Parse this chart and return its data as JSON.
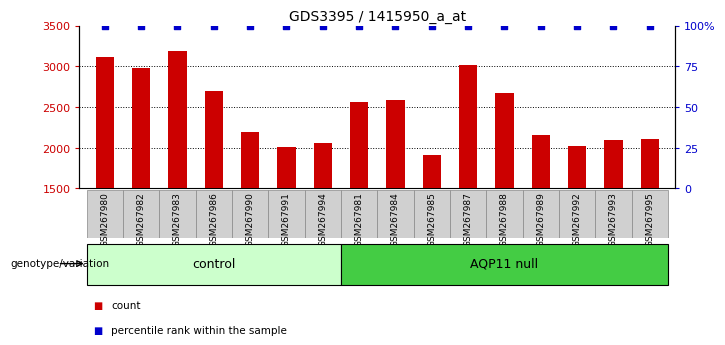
{
  "title": "GDS3395 / 1415950_a_at",
  "samples": [
    "GSM267980",
    "GSM267982",
    "GSM267983",
    "GSM267986",
    "GSM267990",
    "GSM267991",
    "GSM267994",
    "GSM267981",
    "GSM267984",
    "GSM267985",
    "GSM267987",
    "GSM267988",
    "GSM267989",
    "GSM267992",
    "GSM267993",
    "GSM267995"
  ],
  "counts": [
    3110,
    2980,
    3190,
    2700,
    2190,
    2010,
    2060,
    2560,
    2590,
    1910,
    3010,
    2670,
    2160,
    2020,
    2090,
    2110
  ],
  "ymin": 1500,
  "ymax": 3500,
  "yticks_left": [
    1500,
    2000,
    2500,
    3000,
    3500
  ],
  "yticks_right": [
    0,
    25,
    50,
    75,
    100
  ],
  "yticks_right_labels": [
    "0",
    "25",
    "50",
    "75",
    "100%"
  ],
  "grid_lines": [
    2000,
    2500,
    3000
  ],
  "bar_color": "#cc0000",
  "dot_color": "#0000cc",
  "bar_width": 0.5,
  "control_label": "control",
  "aqp11_label": "AQP11 null",
  "control_color": "#ccffcc",
  "aqp11_color": "#44cc44",
  "n_control": 7,
  "n_aqp11": 9,
  "genotype_label": "genotype/variation",
  "legend_count_label": "count",
  "legend_percentile_label": "percentile rank within the sample",
  "left_tick_color": "#cc0000",
  "right_tick_color": "#0000cc",
  "sample_bg_color": "#d0d0d0",
  "sample_border_color": "#888888"
}
